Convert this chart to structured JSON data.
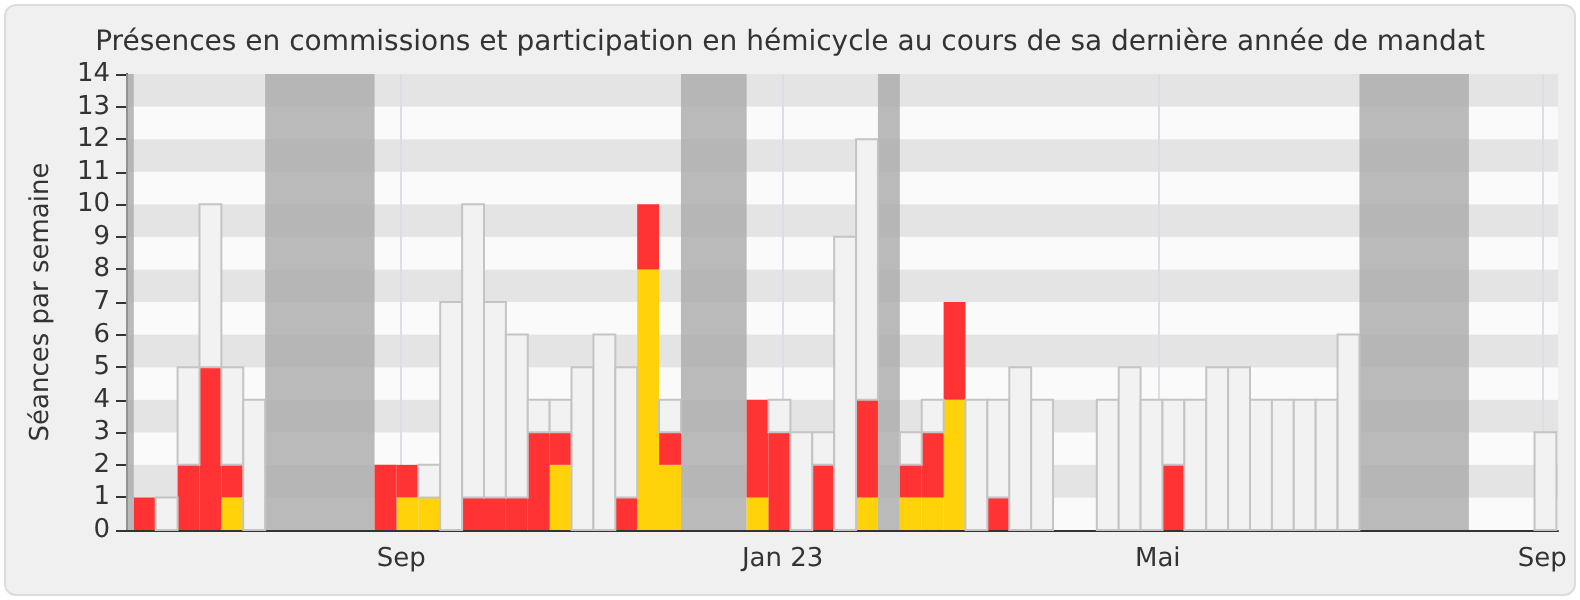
{
  "chart_data": {
    "type": "bar",
    "title": "Présences en commissions et participation en hémicycle au cours de sa dernière année de mandat",
    "ylabel": "Séances par semaine",
    "stacked": true,
    "x": [
      "2022-06-11",
      "2022-06-18",
      "2022-06-25",
      "2022-07-02",
      "2022-07-09",
      "2022-07-16",
      "2022-07-23",
      "2022-07-30",
      "2022-08-06",
      "2022-08-13",
      "2022-08-20",
      "2022-08-27",
      "2022-09-03",
      "2022-09-10",
      "2022-09-17",
      "2022-09-24",
      "2022-10-01",
      "2022-10-08",
      "2022-10-15",
      "2022-10-22",
      "2022-10-29",
      "2022-11-05",
      "2022-11-12",
      "2022-11-19",
      "2022-11-26",
      "2022-12-03",
      "2022-12-10",
      "2022-12-17",
      "2022-12-24",
      "2022-12-31",
      "2023-01-07",
      "2023-01-14",
      "2023-01-21",
      "2023-01-28",
      "2023-02-04",
      "2023-02-11",
      "2023-02-18",
      "2023-02-25",
      "2023-03-04",
      "2023-03-11",
      "2023-03-18",
      "2023-03-25",
      "2023-04-01",
      "2023-04-08",
      "2023-04-15",
      "2023-04-22",
      "2023-04-29",
      "2023-05-06",
      "2023-05-13",
      "2023-05-20",
      "2023-05-27",
      "2023-06-03",
      "2023-06-10",
      "2023-06-17",
      "2023-06-24",
      "2023-07-01",
      "2023-07-08",
      "2023-07-15",
      "2023-07-22",
      "2023-07-29",
      "2023-08-05",
      "2023-08-12",
      "2023-08-19",
      "2023-08-26",
      "2023-09-02"
    ],
    "series": [
      {
        "color": "#ffd20a",
        "values": [
          null,
          null,
          null,
          null,
          1,
          null,
          null,
          null,
          null,
          null,
          null,
          null,
          1,
          1,
          null,
          null,
          null,
          null,
          null,
          2,
          null,
          null,
          null,
          8,
          2,
          null,
          null,
          null,
          1,
          null,
          null,
          null,
          null,
          1,
          null,
          1,
          1,
          4,
          null,
          null,
          null,
          null,
          null,
          null,
          null,
          null,
          null,
          null,
          null,
          null,
          null,
          null,
          null,
          null,
          null,
          null,
          null,
          null,
          null,
          null,
          null,
          null,
          null,
          null,
          null
        ]
      },
      {
        "color": "#ff3333",
        "values": [
          1,
          null,
          2,
          5,
          1,
          null,
          null,
          null,
          null,
          null,
          null,
          2,
          1,
          null,
          null,
          1,
          1,
          1,
          3,
          1,
          null,
          null,
          1,
          2,
          1,
          null,
          null,
          null,
          3,
          3,
          null,
          2,
          null,
          3,
          null,
          1,
          2,
          3,
          null,
          1,
          null,
          null,
          null,
          null,
          null,
          null,
          null,
          2,
          null,
          null,
          null,
          null,
          null,
          null,
          null,
          null,
          null,
          null,
          null,
          null,
          null,
          null,
          null,
          null,
          null
        ]
      },
      {
        "color": "#f2f2f2",
        "values": [
          null,
          1,
          3,
          5,
          3,
          4,
          null,
          null,
          null,
          null,
          null,
          null,
          null,
          1,
          7,
          9,
          6,
          5,
          1,
          1,
          5,
          6,
          4,
          null,
          1,
          null,
          null,
          null,
          null,
          1,
          3,
          1,
          9,
          8,
          null,
          1,
          1,
          null,
          4,
          3,
          5,
          4,
          null,
          null,
          4,
          5,
          4,
          2,
          4,
          5,
          5,
          4,
          4,
          4,
          4,
          6,
          null,
          null,
          null,
          null,
          null,
          null,
          null,
          null,
          3
        ]
      }
    ],
    "xlim": [
      "2022-06-05",
      "2023-09-06"
    ],
    "xticks": [
      {
        "value": "2022-09-01",
        "label": "Sep"
      },
      {
        "value": "2023-01-01",
        "label": "Jan 23"
      },
      {
        "value": "2023-05-01",
        "label": "Mai"
      },
      {
        "value": "2023-09-01",
        "label": "Sep"
      }
    ],
    "ylim": [
      0,
      14
    ],
    "yticks": [
      0,
      1,
      2,
      3,
      4,
      5,
      6,
      7,
      8,
      9,
      10,
      11,
      12,
      13,
      14
    ],
    "bands": [
      {
        "axis": "x",
        "from": "2022-06-05",
        "to": "2022-06-07T12:00",
        "color": "#aaaaaa"
      },
      {
        "axis": "x",
        "from": "2022-07-19T12:00",
        "to": "2022-08-23T12:00",
        "color": "#aaaaaa"
      },
      {
        "axis": "x",
        "from": "2022-11-29T12:00",
        "to": "2022-12-20T12:00",
        "color": "#aaaaaa"
      },
      {
        "axis": "x",
        "from": "2023-01-31T12:00",
        "to": "2023-02-07T12:00",
        "color": "#aaaaaa"
      },
      {
        "axis": "x",
        "from": "2023-07-04T12:00",
        "to": "2023-08-08T12:00",
        "color": "#aaaaaa"
      }
    ],
    "grid": true
  }
}
